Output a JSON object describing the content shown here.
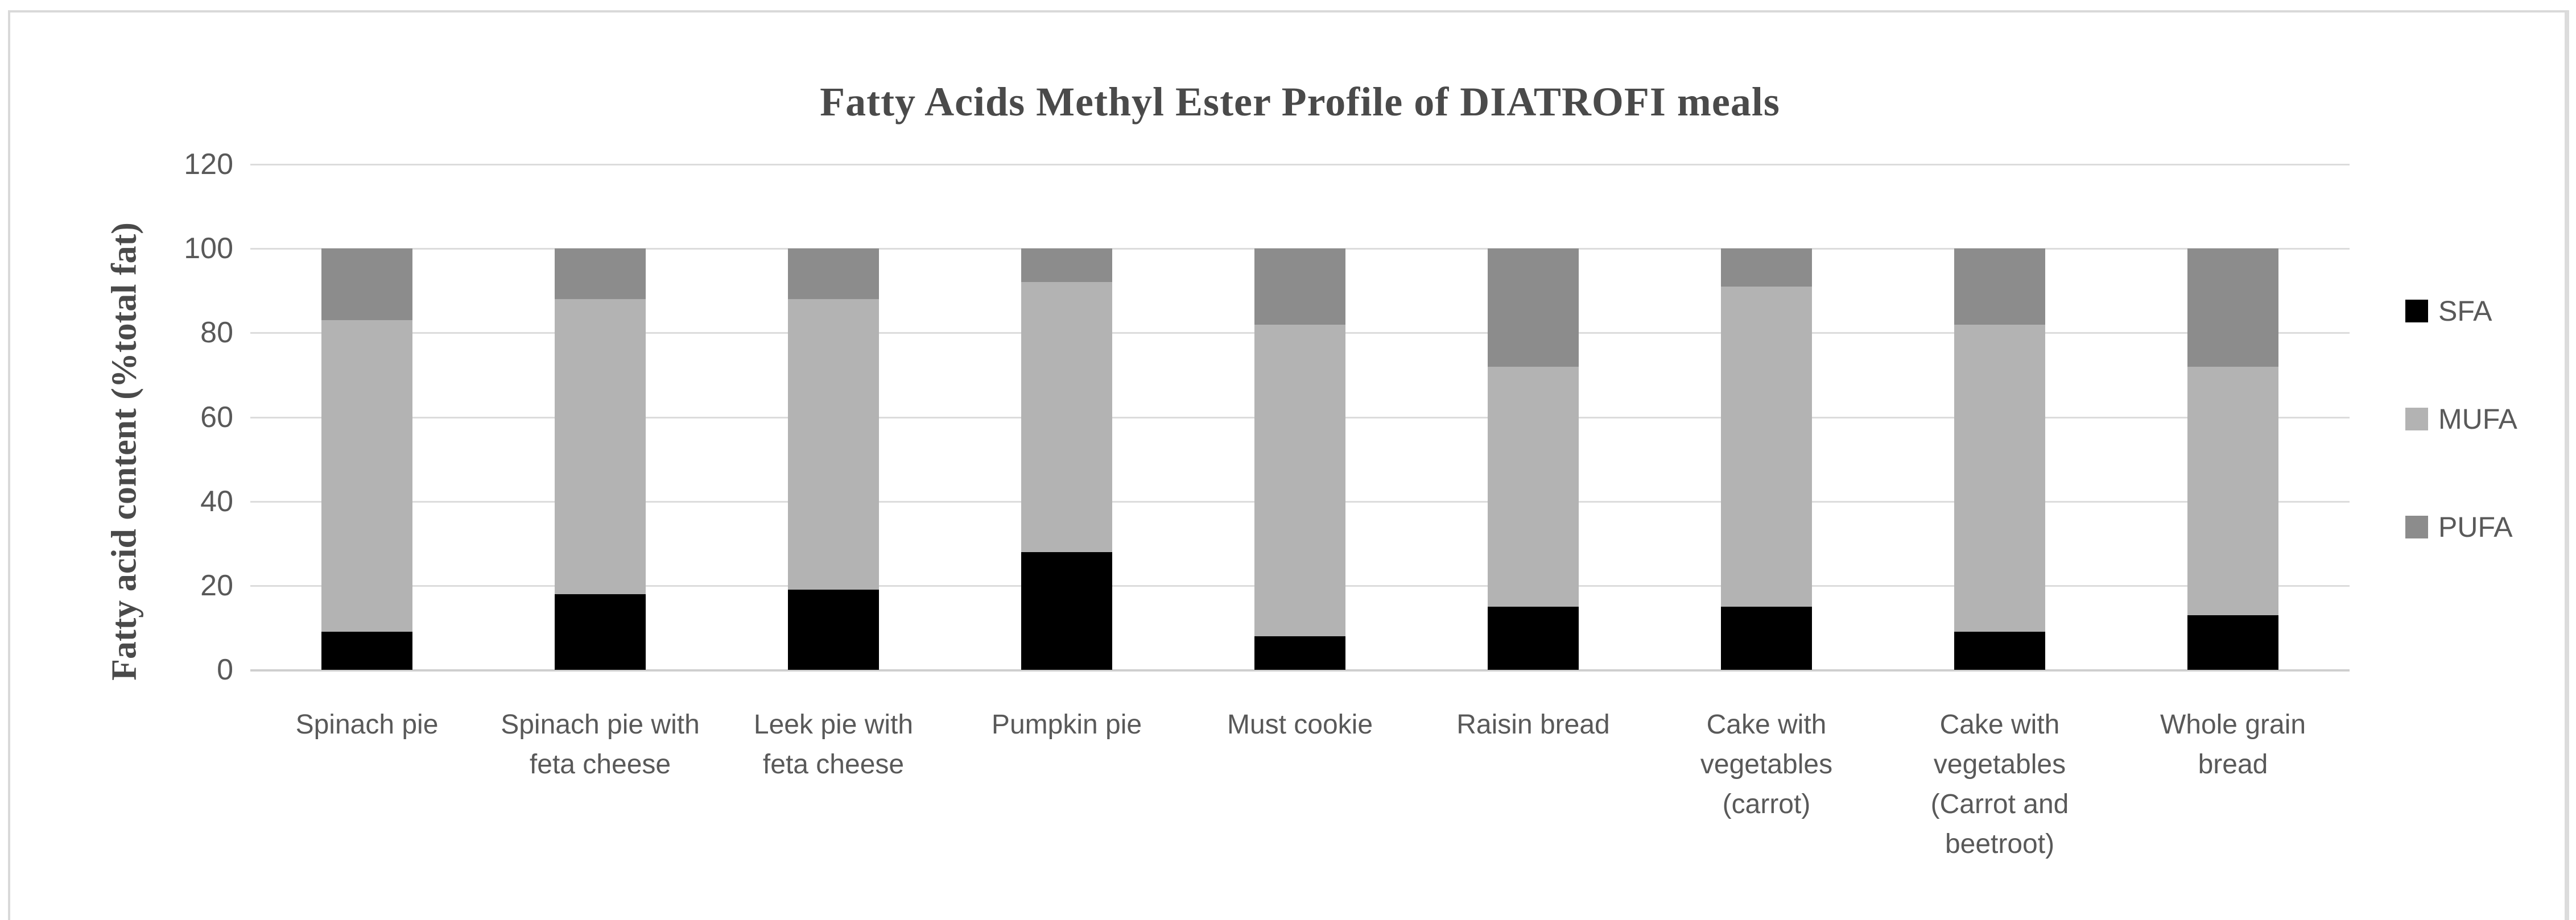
{
  "figure": {
    "frame_border_color": "#d9d9d9",
    "background_color": "#ffffff",
    "text_color": "#595959",
    "title_color": "#4a4a4a",
    "gridline_color": "#dcdcdc",
    "axis_line_color": "#cfcfcf"
  },
  "chart_data": {
    "type": "bar",
    "stacked": true,
    "title": "Fatty Acids Methyl Ester Profile of DIATROFI meals",
    "ylabel": "Fatty acid content (%total fat)",
    "xlabel": "",
    "ylim": [
      0,
      120
    ],
    "yticks": [
      0,
      20,
      40,
      60,
      80,
      100,
      120
    ],
    "grid": true,
    "legend_position": "right",
    "categories": [
      "Spinach pie",
      "Spinach pie with feta cheese",
      "Leek pie with feta cheese",
      "Pumpkin pie",
      "Must cookie",
      "Raisin bread",
      "Cake with vegetables (carrot)",
      "Cake with vegetables (Carrot and beetroot)",
      "Whole grain bread"
    ],
    "series": [
      {
        "name": "SFA",
        "color": "#000000",
        "values": [
          9,
          18,
          19,
          28,
          8,
          15,
          15,
          9,
          13
        ]
      },
      {
        "name": "MUFA",
        "color": "#b3b3b3",
        "values": [
          74,
          70,
          69,
          64,
          74,
          57,
          76,
          73,
          59
        ]
      },
      {
        "name": "PUFA",
        "color": "#8c8c8c",
        "values": [
          17,
          12,
          12,
          8,
          18,
          28,
          9,
          18,
          28
        ]
      }
    ]
  }
}
